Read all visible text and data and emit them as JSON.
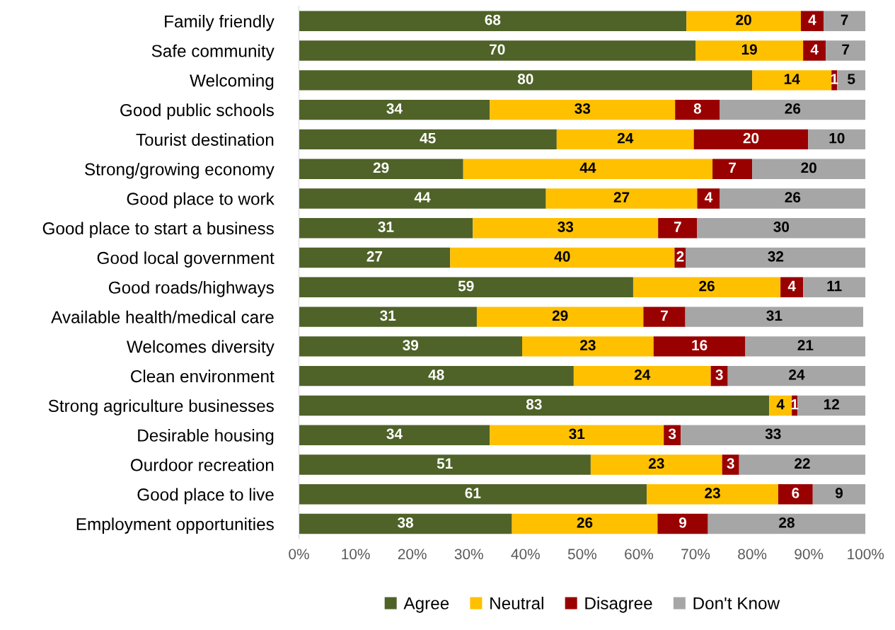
{
  "chart_data": {
    "type": "bar",
    "orientation": "horizontal",
    "stacked": true,
    "categories": [
      "Family friendly",
      "Safe community",
      "Welcoming",
      "Good public schools",
      "Tourist destination",
      "Strong/growing economy",
      "Good place to work",
      "Good place to start a business",
      "Good local government",
      "Good roads/highways",
      "Available health/medical care",
      "Welcomes diversity",
      "Clean environment",
      "Strong agriculture businesses",
      "Desirable housing",
      "Ourdoor recreation",
      "Good place to live",
      "Employment opportunities"
    ],
    "series": [
      {
        "name": "Agree",
        "color": "#4f6228",
        "values": [
          68.4,
          70,
          80,
          33.7,
          45.5,
          29,
          43.6,
          30.7,
          26.7,
          59,
          31.4,
          39.4,
          48.5,
          83,
          33.7,
          51.5,
          61.4,
          37.6
        ],
        "value_labels": [
          "68",
          "70",
          "80",
          "34",
          "45",
          "29",
          "44",
          "31",
          "27",
          "59",
          "31",
          "39",
          "48",
          "83",
          "34",
          "51",
          "61",
          "38"
        ]
      },
      {
        "name": "Neutral",
        "color": "#ffc000",
        "values": [
          20.2,
          19,
          14,
          32.7,
          24.2,
          44,
          26.7,
          32.7,
          39.6,
          26,
          29.4,
          23.2,
          24.2,
          4,
          30.7,
          23.2,
          23.2,
          25.7
        ],
        "value_labels": [
          "20",
          "19",
          "14",
          "33",
          "24",
          "44",
          "27",
          "33",
          "40",
          "26",
          "29",
          "23",
          "24",
          "4",
          "31",
          "23",
          "23",
          "26"
        ]
      },
      {
        "name": "Disagree",
        "color": "#990000",
        "values": [
          4.0,
          4,
          1,
          7.9,
          20.2,
          7,
          4.0,
          6.9,
          2.0,
          4,
          7.4,
          16.2,
          3.0,
          1,
          3.0,
          3.0,
          6.1,
          8.9
        ],
        "value_labels": [
          "4",
          "4",
          "1",
          "8",
          "20",
          "7",
          "4",
          "7",
          "2",
          "4",
          "7",
          "16",
          "3",
          "1",
          "3",
          "3",
          "6",
          "9"
        ]
      },
      {
        "name": "Don't Know",
        "color": "#a6a6a6",
        "values": [
          7.4,
          7,
          5,
          25.7,
          10.1,
          20,
          25.7,
          29.7,
          31.7,
          11,
          31.4,
          21.2,
          24.3,
          12,
          32.6,
          22.3,
          9.3,
          27.8
        ],
        "value_labels": [
          "7",
          "7",
          "5",
          "26",
          "10",
          "20",
          "26",
          "30",
          "32",
          "11",
          "31",
          "21",
          "24",
          "12",
          "33",
          "22",
          "9",
          "28"
        ]
      }
    ],
    "xlim": [
      0,
      100
    ],
    "xticks": [
      {
        "value": 0,
        "label": "0%"
      },
      {
        "value": 10,
        "label": "10%"
      },
      {
        "value": 20,
        "label": "20%"
      },
      {
        "value": 30,
        "label": "30%"
      },
      {
        "value": 40,
        "label": "40%"
      },
      {
        "value": 50,
        "label": "50%"
      },
      {
        "value": 60,
        "label": "60%"
      },
      {
        "value": 70,
        "label": "70%"
      },
      {
        "value": 80,
        "label": "80%"
      },
      {
        "value": 90,
        "label": "90%"
      },
      {
        "value": 100,
        "label": "100%"
      }
    ],
    "grid": false,
    "legend": "bottom"
  }
}
